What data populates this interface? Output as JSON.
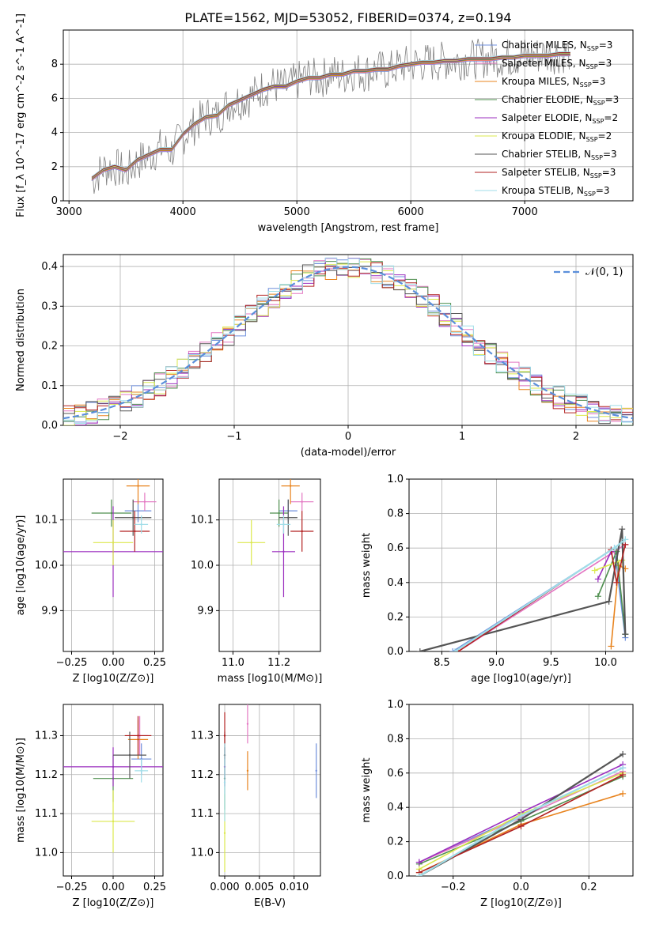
{
  "title": "PLATE=1562, MJD=53052, FIBERID=0374, z=0.194",
  "models": [
    {
      "name": "Chabrier MILES",
      "nssp": "3",
      "color": "#6f8fdc"
    },
    {
      "name": "Salpeter MILES",
      "nssp": "3",
      "color": "#e377c2"
    },
    {
      "name": "Kroupa MILES",
      "nssp": "3",
      "color": "#e8841f"
    },
    {
      "name": "Chabrier ELODIE",
      "nssp": "3",
      "color": "#4f8f4f"
    },
    {
      "name": "Salpeter ELODIE",
      "nssp": "2",
      "color": "#9b2fbf"
    },
    {
      "name": "Kroupa ELODIE",
      "nssp": "2",
      "color": "#dbe84c"
    },
    {
      "name": "Chabrier STELIB",
      "nssp": "3",
      "color": "#555555"
    },
    {
      "name": "Salpeter STELIB",
      "nssp": "3",
      "color": "#b22222"
    },
    {
      "name": "Kroupa STELIB",
      "nssp": "3",
      "color": "#9fdde8"
    }
  ],
  "chart_data": [
    {
      "id": "spectrum",
      "type": "line",
      "xlabel": "wavelength [Angstrom, rest frame]",
      "ylabel": "Flux [f_λ 10^-17 erg cm^-2 s^-1 A^-1]",
      "xlim": [
        2950,
        7950
      ],
      "ylim": [
        0,
        10
      ],
      "xticks": [
        "3000",
        "4000",
        "5000",
        "6000",
        "7000"
      ],
      "xtick_values": [
        3000,
        4000,
        5000,
        6000,
        7000
      ],
      "yticks": [
        "0",
        "2",
        "4",
        "6",
        "8"
      ],
      "ytick_values": [
        0,
        2,
        4,
        6,
        8
      ],
      "data_x": [
        3200,
        3300,
        3400,
        3500,
        3600,
        3700,
        3800,
        3900,
        4000,
        4100,
        4200,
        4300,
        4400,
        4500,
        4600,
        4700,
        4800,
        4900,
        5000,
        5100,
        5200,
        5300,
        5400,
        5500,
        5600,
        5700,
        5800,
        5900,
        6000,
        6100,
        6200,
        6300,
        6400,
        6500,
        6600,
        6700,
        6800,
        6900,
        7000,
        7100,
        7200,
        7300,
        7400
      ],
      "data_y": [
        1.2,
        1.9,
        2.0,
        1.6,
        2.3,
        2.6,
        3.1,
        2.9,
        3.8,
        4.4,
        5.0,
        4.9,
        5.7,
        5.9,
        6.1,
        6.6,
        6.8,
        6.6,
        7.0,
        7.3,
        7.1,
        7.5,
        7.3,
        7.6,
        7.5,
        7.7,
        7.6,
        7.9,
        8.0,
        8.1,
        8.1,
        8.2,
        8.2,
        8.3,
        8.3,
        8.4,
        8.4,
        8.4,
        8.5,
        8.5,
        8.6,
        8.6,
        8.7
      ],
      "model_y": [
        1.3,
        1.8,
        2.0,
        1.8,
        2.4,
        2.7,
        3.0,
        3.0,
        3.9,
        4.5,
        4.9,
        5.0,
        5.6,
        5.9,
        6.2,
        6.5,
        6.7,
        6.7,
        7.0,
        7.2,
        7.2,
        7.4,
        7.4,
        7.6,
        7.6,
        7.7,
        7.7,
        7.9,
        8.0,
        8.1,
        8.1,
        8.2,
        8.2,
        8.3,
        8.3,
        8.3,
        8.4,
        8.4,
        8.5,
        8.5,
        8.5,
        8.6,
        8.6
      ]
    },
    {
      "id": "residuals",
      "type": "line",
      "xlabel": "(data-model)/error",
      "ylabel": "Normed distribution",
      "xlim": [
        -2.5,
        2.5
      ],
      "ylim": [
        0,
        0.43
      ],
      "xticks": [
        "−2",
        "−1",
        "0",
        "1",
        "2"
      ],
      "xtick_values": [
        -2,
        -1,
        0,
        1,
        2
      ],
      "yticks": [
        "0.0",
        "0.1",
        "0.2",
        "0.3",
        "0.4"
      ],
      "ytick_values": [
        0,
        0.1,
        0.2,
        0.3,
        0.4
      ],
      "legend": "𝒩(0, 1)",
      "legend_loc": "upper right"
    },
    {
      "id": "z_age",
      "type": "scatter",
      "xlabel": "Z [log10(Z/Z⊙)]",
      "ylabel": "age [log10(age/yr)]",
      "xlim": [
        -0.3,
        0.3
      ],
      "ylim": [
        9.81,
        10.19
      ],
      "xticks": [
        "−0.25",
        "0.00",
        "0.25"
      ],
      "xtick_values": [
        -0.25,
        0,
        0.25
      ],
      "yticks": [
        "9.9",
        "10.0",
        "10.1"
      ],
      "ytick_values": [
        9.9,
        10.0,
        10.1
      ],
      "points": [
        {
          "x": 0.15,
          "y": 10.12,
          "xerr": 0.08,
          "yerr": 0.025
        },
        {
          "x": 0.19,
          "y": 10.14,
          "xerr": 0.07,
          "yerr": 0.02
        },
        {
          "x": 0.15,
          "y": 10.175,
          "xerr": 0.07,
          "yerr": 0.04
        },
        {
          "x": -0.01,
          "y": 10.115,
          "xerr": 0.12,
          "yerr": 0.03
        },
        {
          "x": 0.0,
          "y": 10.03,
          "xerr": 0.3,
          "yerr": 0.1
        },
        {
          "x": 0.0,
          "y": 10.05,
          "xerr": 0.12,
          "yerr": 0.05
        },
        {
          "x": 0.12,
          "y": 10.105,
          "xerr": 0.11,
          "yerr": 0.04
        },
        {
          "x": 0.13,
          "y": 10.075,
          "xerr": 0.09,
          "yerr": 0.045
        },
        {
          "x": 0.17,
          "y": 10.09,
          "xerr": 0.04,
          "yerr": 0.02
        }
      ]
    },
    {
      "id": "mass_age",
      "type": "scatter",
      "xlabel": "mass [log10(M/M⊙)]",
      "ylabel": "",
      "xlim": [
        10.94,
        11.38
      ],
      "ylim": [
        9.81,
        10.19
      ],
      "xticks": [
        "11.0",
        "11.2"
      ],
      "xtick_values": [
        11.0,
        11.2
      ],
      "yticks": [
        "9.9",
        "10.0",
        "10.1"
      ],
      "ytick_values": [
        9.9,
        10.0,
        10.1
      ],
      "points": [
        {
          "x": 11.24,
          "y": 10.12,
          "xerr": 0.04,
          "yerr": 0.025
        },
        {
          "x": 11.3,
          "y": 10.14,
          "xerr": 0.05,
          "yerr": 0.02
        },
        {
          "x": 11.25,
          "y": 10.175,
          "xerr": 0.04,
          "yerr": 0.04
        },
        {
          "x": 11.2,
          "y": 10.115,
          "xerr": 0.04,
          "yerr": 0.03
        },
        {
          "x": 11.22,
          "y": 10.03,
          "xerr": 0.05,
          "yerr": 0.1
        },
        {
          "x": 11.08,
          "y": 10.05,
          "xerr": 0.06,
          "yerr": 0.05
        },
        {
          "x": 11.24,
          "y": 10.105,
          "xerr": 0.04,
          "yerr": 0.04
        },
        {
          "x": 11.3,
          "y": 10.075,
          "xerr": 0.05,
          "yerr": 0.045
        },
        {
          "x": 11.22,
          "y": 10.09,
          "xerr": 0.03,
          "yerr": 0.02
        }
      ]
    },
    {
      "id": "age_weight",
      "type": "line",
      "xlabel": "age [log10(age/yr)]",
      "ylabel": "mass weight",
      "xlim": [
        8.2,
        10.25
      ],
      "ylim": [
        0,
        1
      ],
      "xticks": [
        "8.5",
        "9.0",
        "9.5",
        "10.0"
      ],
      "xtick_values": [
        8.5,
        9.0,
        9.5,
        10.0
      ],
      "yticks": [
        "0.0",
        "0.2",
        "0.4",
        "0.6",
        "0.8",
        "1.0"
      ],
      "ytick_values": [
        0,
        0.2,
        0.4,
        0.6,
        0.8,
        1.0
      ],
      "series": [
        {
          "x": [
            8.6,
            10.08,
            10.18
          ],
          "y": [
            0.0,
            0.6,
            0.08
          ]
        },
        {
          "x": [
            8.65,
            10.08,
            10.18
          ],
          "y": [
            0.0,
            0.58,
            0.62
          ]
        },
        {
          "x": [
            10.05,
            10.12,
            10.18
          ],
          "y": [
            0.03,
            0.5,
            0.48
          ]
        },
        {
          "x": [
            9.93,
            10.1,
            10.18
          ],
          "y": [
            0.32,
            0.58,
            0.1
          ]
        },
        {
          "x": [
            9.93,
            10.05
          ],
          "y": [
            0.42,
            0.58
          ]
        },
        {
          "x": [
            9.9,
            10.15
          ],
          "y": [
            0.47,
            0.53
          ]
        },
        {
          "x": [
            8.3,
            10.03,
            10.15,
            10.18
          ],
          "y": [
            0.0,
            0.29,
            0.71,
            0.1
          ]
        },
        {
          "x": [
            8.65,
            10.05,
            10.1,
            10.18
          ],
          "y": [
            0.0,
            0.59,
            0.4,
            0.62
          ]
        },
        {
          "x": [
            8.62,
            10.08,
            10.18
          ],
          "y": [
            0.0,
            0.6,
            0.65
          ]
        }
      ]
    },
    {
      "id": "z_mass",
      "type": "scatter",
      "xlabel": "Z [log10(Z/Z⊙)]",
      "ylabel": "mass [log10(M/M⊙)]",
      "xlim": [
        -0.3,
        0.3
      ],
      "ylim": [
        10.94,
        11.38
      ],
      "xticks": [
        "−0.25",
        "0.00",
        "0.25"
      ],
      "xtick_values": [
        -0.25,
        0,
        0.25
      ],
      "yticks": [
        "11.0",
        "11.1",
        "11.2",
        "11.3"
      ],
      "ytick_values": [
        11.0,
        11.1,
        11.2,
        11.3
      ],
      "points": [
        {
          "x": 0.17,
          "y": 11.24,
          "xerr": 0.06,
          "yerr": 0.04
        },
        {
          "x": 0.16,
          "y": 11.3,
          "xerr": 0.05,
          "yerr": 0.05
        },
        {
          "x": 0.15,
          "y": 11.29,
          "xerr": 0.06,
          "yerr": 0.05
        },
        {
          "x": 0.0,
          "y": 11.19,
          "xerr": 0.12,
          "yerr": 0.06
        },
        {
          "x": 0.0,
          "y": 11.22,
          "xerr": 0.3,
          "yerr": 0.05
        },
        {
          "x": 0.0,
          "y": 11.08,
          "xerr": 0.13,
          "yerr": 0.08
        },
        {
          "x": 0.1,
          "y": 11.25,
          "xerr": 0.1,
          "yerr": 0.06
        },
        {
          "x": 0.15,
          "y": 11.3,
          "xerr": 0.08,
          "yerr": 0.05
        },
        {
          "x": 0.17,
          "y": 11.21,
          "xerr": 0.04,
          "yerr": 0.03
        }
      ]
    },
    {
      "id": "ebv_mass",
      "type": "scatter",
      "xlabel": "E(B-V)",
      "ylabel": "",
      "xlim": [
        -0.0008,
        0.0138
      ],
      "ylim": [
        10.94,
        11.38
      ],
      "xticks": [
        "0.000",
        "0.005",
        "0.010"
      ],
      "xtick_values": [
        0,
        0.005,
        0.01
      ],
      "yticks": [
        "11.0",
        "11.1",
        "11.2",
        "11.3"
      ],
      "ytick_values": [
        11.0,
        11.1,
        11.2,
        11.3
      ],
      "points": [
        {
          "x": 0.0132,
          "y": 11.21,
          "yerr": 0.07
        },
        {
          "x": 0.0033,
          "y": 11.33,
          "yerr": 0.05
        },
        {
          "x": 0.0033,
          "y": 11.21,
          "yerr": 0.05
        },
        {
          "x": 0.0,
          "y": 11.19,
          "yerr": 0.08
        },
        {
          "x": 0.0,
          "y": 11.22,
          "yerr": 0.05
        },
        {
          "x": 0.0,
          "y": 11.05,
          "yerr": 0.1
        },
        {
          "x": 0.0,
          "y": 11.25,
          "yerr": 0.06
        },
        {
          "x": 0.0,
          "y": 11.3,
          "yerr": 0.06
        },
        {
          "x": 0.0,
          "y": 11.18,
          "yerr": 0.1
        }
      ]
    },
    {
      "id": "z_weight",
      "type": "line",
      "xlabel": "Z [log10(Z/Z⊙)]",
      "ylabel": "mass weight",
      "xlim": [
        -0.33,
        0.33
      ],
      "ylim": [
        0,
        1
      ],
      "xticks": [
        "−0.2",
        "0.0",
        "0.2"
      ],
      "xtick_values": [
        -0.2,
        0,
        0.2
      ],
      "yticks": [
        "0.0",
        "0.2",
        "0.4",
        "0.6",
        "0.8",
        "1.0"
      ],
      "ytick_values": [
        0,
        0.2,
        0.4,
        0.6,
        0.8,
        1.0
      ],
      "series": [
        {
          "x": [
            -0.3,
            0.0,
            0.3
          ],
          "y": [
            0.08,
            0.35,
            0.63
          ]
        },
        {
          "x": [
            -0.3,
            0.0,
            0.3
          ],
          "y": [
            0.08,
            0.34,
            0.61
          ]
        },
        {
          "x": [
            -0.3,
            0.0,
            0.3
          ],
          "y": [
            0.02,
            0.3,
            0.48
          ]
        },
        {
          "x": [
            -0.3,
            0.0,
            0.3
          ],
          "y": [
            0.07,
            0.32,
            0.58
          ]
        },
        {
          "x": [
            -0.3,
            0.0,
            0.3
          ],
          "y": [
            0.08,
            0.37,
            0.65
          ]
        },
        {
          "x": [
            -0.3,
            0.0,
            0.3
          ],
          "y": [
            0.04,
            0.36,
            0.6
          ]
        },
        {
          "x": [
            -0.3,
            0.0,
            0.3
          ],
          "y": [
            0.0,
            0.33,
            0.71
          ]
        },
        {
          "x": [
            -0.3,
            0.0,
            0.3
          ],
          "y": [
            0.02,
            0.29,
            0.59
          ]
        },
        {
          "x": [
            -0.3,
            0.0,
            0.3
          ],
          "y": [
            0.0,
            0.35,
            0.63
          ]
        }
      ]
    }
  ]
}
